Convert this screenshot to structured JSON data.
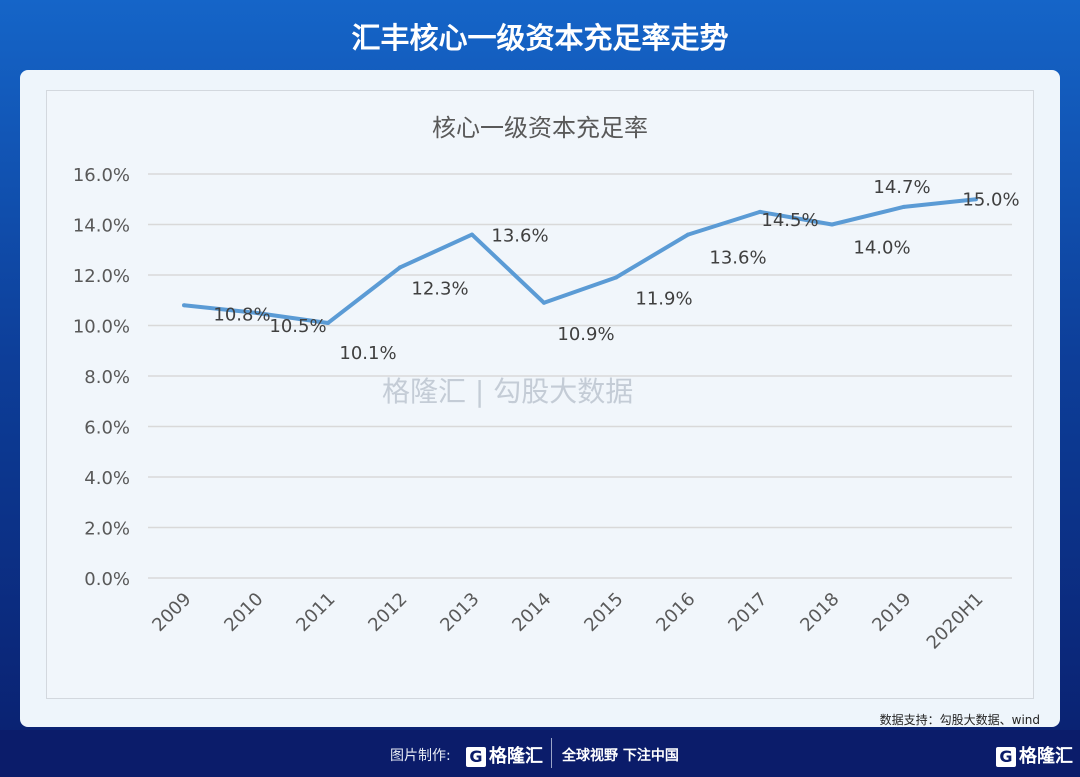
{
  "header": {
    "title": "汇丰核心一级资本充足率走势"
  },
  "chart_data": {
    "type": "line",
    "title": "核心一级资本充足率",
    "categories": [
      "2009",
      "2010",
      "2011",
      "2012",
      "2013",
      "2014",
      "2015",
      "2016",
      "2017",
      "2018",
      "2019",
      "2020H1"
    ],
    "series": [
      {
        "name": "核心一级资本充足率",
        "values": [
          10.8,
          10.5,
          10.1,
          12.3,
          13.6,
          10.9,
          11.9,
          13.6,
          14.5,
          14.0,
          14.7,
          15.0
        ],
        "color": "#5b9bd5"
      }
    ],
    "data_labels": [
      "10.8%",
      "10.5%",
      "10.1%",
      "12.3%",
      "13.6%",
      "10.9%",
      "11.9%",
      "13.6%",
      "14.5%",
      "14.0%",
      "14.7%",
      "15.0%"
    ],
    "y_ticks": [
      "0.0%",
      "2.0%",
      "4.0%",
      "6.0%",
      "8.0%",
      "10.0%",
      "12.0%",
      "14.0%",
      "16.0%"
    ],
    "ylim": [
      0,
      16
    ],
    "grid": true,
    "xlabel": "",
    "ylabel": ""
  },
  "watermark": {
    "logo": "格隆汇",
    "text": "勾股大数据"
  },
  "source": "数据支持：勾股大数据、wind",
  "footer": {
    "made_by": "图片制作:",
    "logo": "格隆汇",
    "slogan": "全球视野 下注中国",
    "corner_logo": "格隆汇"
  }
}
